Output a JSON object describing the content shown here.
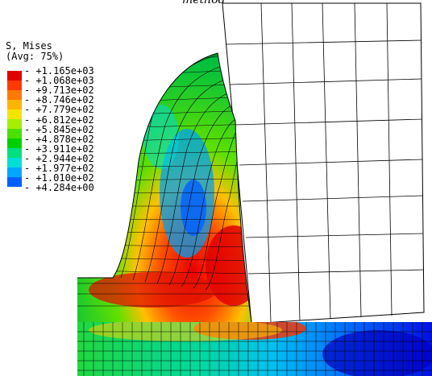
{
  "title": "method",
  "legend": {
    "title_line1": "S, Mises",
    "title_line2": "(Avg: 75%)",
    "values": [
      "+1.165e+03",
      "+1.068e+03",
      "+9.713e+02",
      "+8.746e+02",
      "+7.779e+02",
      "+6.812e+02",
      "+5.845e+02",
      "+4.878e+02",
      "+3.911e+02",
      "+2.944e+02",
      "+1.977e+02",
      "+1.010e+02",
      "+4.284e+00"
    ],
    "colors": [
      "#e00000",
      "#ff3a00",
      "#ff7a00",
      "#ffb400",
      "#f4e600",
      "#a6ee00",
      "#4ae000",
      "#00d000",
      "#00e080",
      "#00e0d8",
      "#00a8ff",
      "#0060ff",
      "#0000e0"
    ]
  }
}
